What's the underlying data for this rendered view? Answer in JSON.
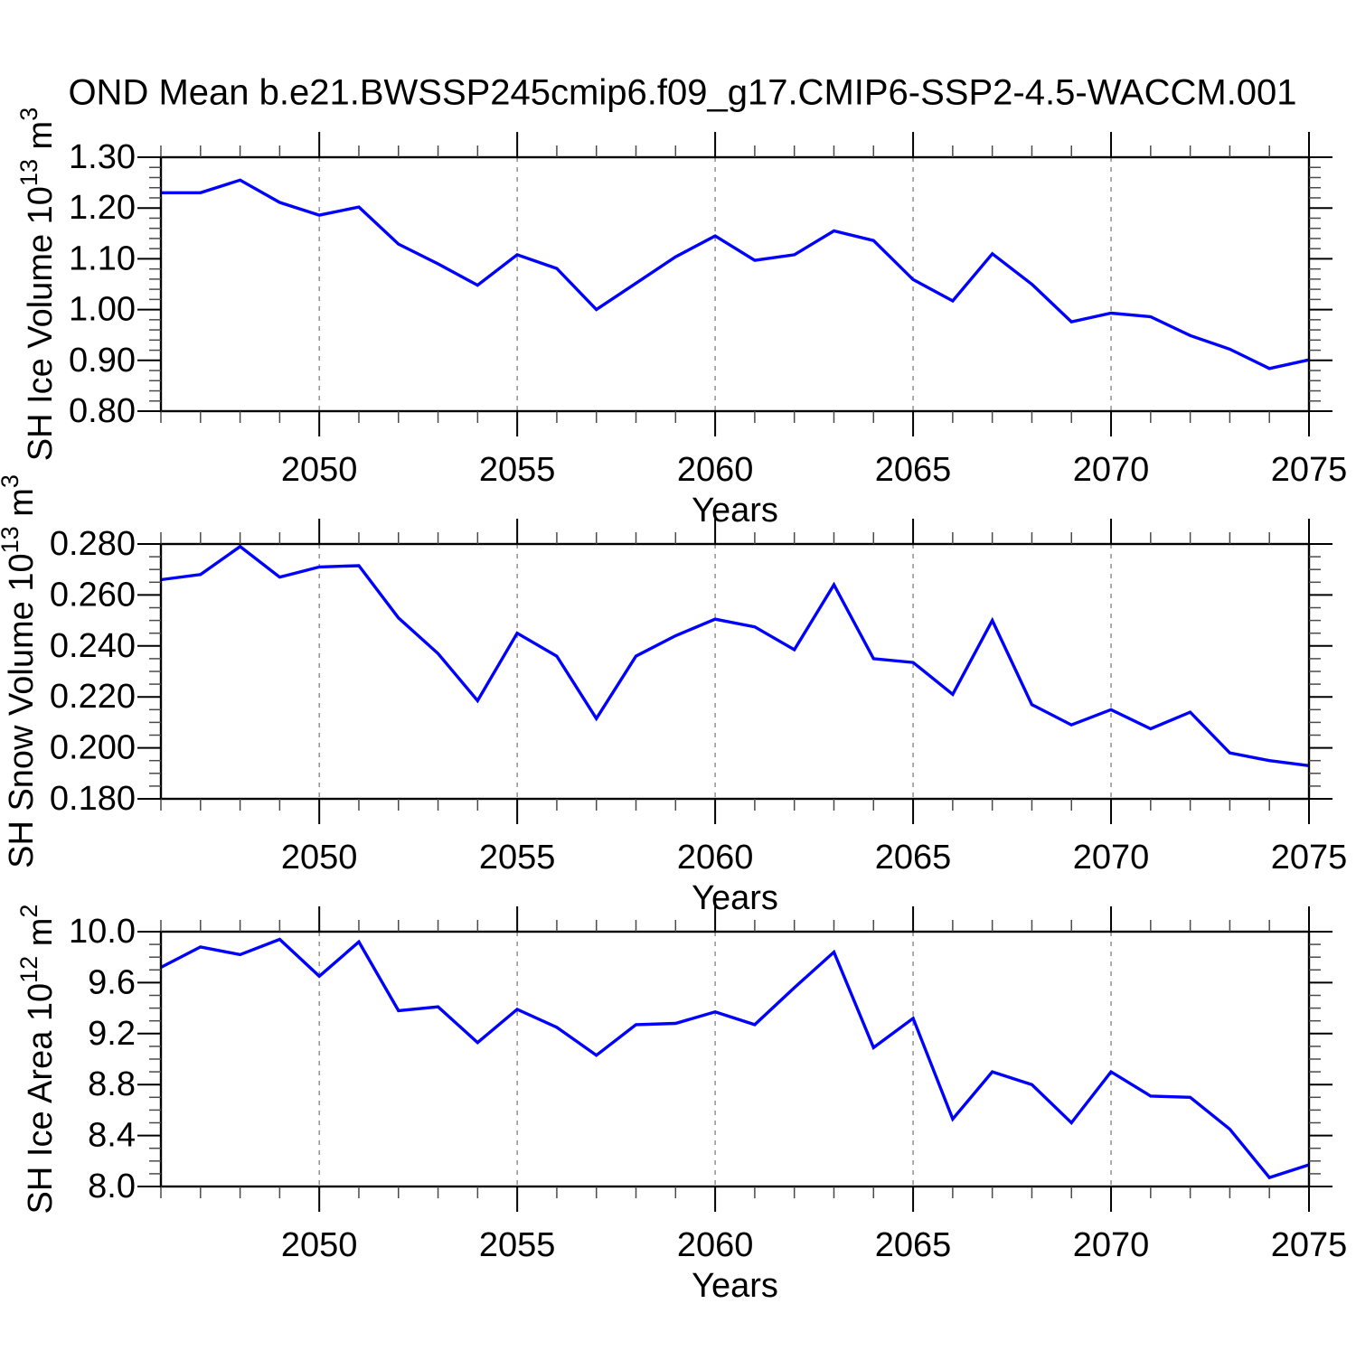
{
  "title": "OND Mean b.e21.BWSSP245cmip6.f09_g17.CMIP6-SSP2-4.5-WACCM.001",
  "colors": {
    "axis": "#000000",
    "major_tick": "#000000",
    "minor_tick": "#4a4a4a",
    "grid": "#808080",
    "background": "#ffffff"
  },
  "chart_data": [
    {
      "name": "sh-ice-volume",
      "type": "line",
      "title": "",
      "ylabel": "SH Ice Volume 10^{13} m^{3}",
      "xlabel": "Years",
      "line_color": "#0000ff",
      "xlim": [
        2046,
        2075
      ],
      "ylim": [
        0.8,
        1.3
      ],
      "ytick_values": [
        0.8,
        0.9,
        1.0,
        1.1,
        1.2,
        1.3
      ],
      "ytick_labels": [
        "0.80",
        "0.90",
        "1.00",
        "1.10",
        "1.20",
        "1.30"
      ],
      "ytick_minor_step": 0.02,
      "xtick_major": [
        2050,
        2055,
        2060,
        2065,
        2070,
        2075
      ],
      "xtick_labels": [
        "2050",
        "2055",
        "2060",
        "2065",
        "2070",
        "2075"
      ],
      "xtick_minor_step": 1,
      "grid_x": [
        2050,
        2055,
        2060,
        2065,
        2070
      ],
      "x": [
        2046,
        2047,
        2048,
        2049,
        2050,
        2051,
        2052,
        2053,
        2054,
        2055,
        2056,
        2057,
        2058,
        2059,
        2060,
        2061,
        2062,
        2063,
        2064,
        2065,
        2066,
        2067,
        2068,
        2069,
        2070,
        2071,
        2072,
        2073,
        2074,
        2075
      ],
      "values": [
        1.23,
        1.23,
        1.255,
        1.211,
        1.186,
        1.202,
        1.129,
        1.09,
        1.048,
        1.108,
        1.081,
        1.0,
        1.052,
        1.104,
        1.145,
        1.097,
        1.108,
        1.155,
        1.136,
        1.059,
        1.017,
        1.11,
        1.05,
        0.976,
        0.993,
        0.986,
        0.949,
        0.922,
        0.884,
        0.901
      ]
    },
    {
      "name": "sh-snow-volume",
      "type": "line",
      "title": "",
      "ylabel": "SH Snow Volume 10^{13} m^{3}",
      "xlabel": "Years",
      "line_color": "#0000ff",
      "xlim": [
        2046,
        2075
      ],
      "ylim": [
        0.18,
        0.28
      ],
      "ytick_values": [
        0.18,
        0.2,
        0.22,
        0.24,
        0.26,
        0.28
      ],
      "ytick_labels": [
        "0.180",
        "0.200",
        "0.220",
        "0.240",
        "0.260",
        "0.280"
      ],
      "ytick_minor_step": 0.005,
      "xtick_major": [
        2050,
        2055,
        2060,
        2065,
        2070,
        2075
      ],
      "xtick_labels": [
        "2050",
        "2055",
        "2060",
        "2065",
        "2070",
        "2075"
      ],
      "xtick_minor_step": 1,
      "grid_x": [
        2050,
        2055,
        2060,
        2065,
        2070
      ],
      "x": [
        2046,
        2047,
        2048,
        2049,
        2050,
        2051,
        2052,
        2053,
        2054,
        2055,
        2056,
        2057,
        2058,
        2059,
        2060,
        2061,
        2062,
        2063,
        2064,
        2065,
        2066,
        2067,
        2068,
        2069,
        2070,
        2071,
        2072,
        2073,
        2074,
        2075
      ],
      "values": [
        0.266,
        0.268,
        0.279,
        0.267,
        0.271,
        0.2715,
        0.251,
        0.237,
        0.2185,
        0.245,
        0.236,
        0.2115,
        0.236,
        0.244,
        0.2505,
        0.2475,
        0.2385,
        0.264,
        0.235,
        0.2335,
        0.221,
        0.25,
        0.217,
        0.209,
        0.215,
        0.2075,
        0.214,
        0.198,
        0.195,
        0.193
      ]
    },
    {
      "name": "sh-ice-area",
      "type": "line",
      "title": "",
      "ylabel": "SH Ice Area 10^{12} m^{2}",
      "xlabel": "Years",
      "line_color": "#0000ff",
      "xlim": [
        2046,
        2075
      ],
      "ylim": [
        8.0,
        10.0
      ],
      "ytick_values": [
        8.0,
        8.4,
        8.8,
        9.2,
        9.6,
        10.0
      ],
      "ytick_labels": [
        "8.0",
        "8.4",
        "8.8",
        "9.2",
        "9.6",
        "10.0"
      ],
      "ytick_minor_step": 0.1,
      "xtick_major": [
        2050,
        2055,
        2060,
        2065,
        2070,
        2075
      ],
      "xtick_labels": [
        "2050",
        "2055",
        "2060",
        "2065",
        "2070",
        "2075"
      ],
      "xtick_minor_step": 1,
      "grid_x": [
        2050,
        2055,
        2060,
        2065,
        2070
      ],
      "x": [
        2046,
        2047,
        2048,
        2049,
        2050,
        2051,
        2052,
        2053,
        2054,
        2055,
        2056,
        2057,
        2058,
        2059,
        2060,
        2061,
        2062,
        2063,
        2064,
        2065,
        2066,
        2067,
        2068,
        2069,
        2070,
        2071,
        2072,
        2073,
        2074,
        2075
      ],
      "values": [
        9.72,
        9.88,
        9.82,
        9.94,
        9.65,
        9.92,
        9.38,
        9.41,
        9.13,
        9.39,
        9.25,
        9.03,
        9.27,
        9.28,
        9.37,
        9.27,
        9.56,
        9.84,
        9.09,
        9.32,
        8.53,
        8.9,
        8.8,
        8.5,
        8.9,
        8.71,
        8.7,
        8.45,
        8.07,
        8.17
      ]
    }
  ]
}
